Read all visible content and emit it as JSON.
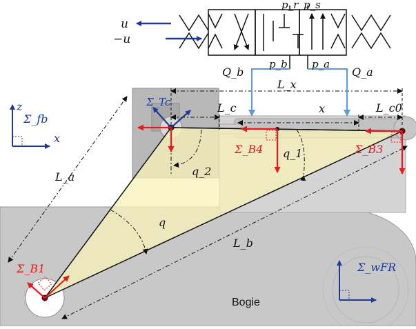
{
  "valve": {
    "label_u": "u",
    "label_neg_u": "−u",
    "label_pr": "p_r",
    "label_ps": "p_s",
    "label_pb": "p_b",
    "label_pa": "p_a",
    "label_Qb": "Q_b",
    "label_Qa": "Q_a"
  },
  "dimensions": {
    "Lx": "L_x",
    "Lc": "L_c",
    "x": "x",
    "Lc0": "L_c0",
    "La": "L_a",
    "Lb": "L_b"
  },
  "angles": {
    "q": "q",
    "q1": "q_1",
    "q2": "q_2"
  },
  "frames": {
    "fb": {
      "name": "Σ_fb",
      "z": "z",
      "x": "x"
    },
    "Tc": "Σ_Tc",
    "B1": "Σ_B1",
    "B3": "Σ_B3",
    "B4": "Σ_B4",
    "wFR": "Σ_wFR"
  },
  "body_label": "Bogie",
  "colors": {
    "frame_blue": "#1f3a93",
    "pipe_blue": "#5b9bd5",
    "force_red": "#e8191e",
    "triangle_fill": "#f8f1b8",
    "body_gray": "#c8c8c8"
  }
}
